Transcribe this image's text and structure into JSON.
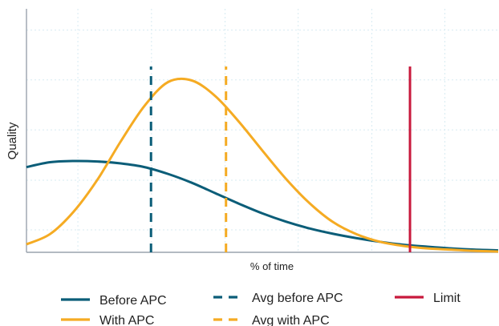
{
  "chart_data": {
    "type": "line",
    "title": "",
    "xlabel": "% of time",
    "ylabel": "Quality",
    "xlim": [
      0,
      100
    ],
    "ylim": [
      0,
      100
    ],
    "grid": true,
    "legend_placement": "bottom",
    "x_ticks": [
      0,
      10.9,
      26.5,
      42.1,
      57.6,
      73.2,
      88.7,
      100
    ],
    "y_ticks": [
      9.2,
      29.6,
      50.3,
      70.8,
      91.3
    ],
    "series": [
      {
        "name": "Before APC",
        "style": "solid",
        "color": "#0b5d78",
        "x": [
          0,
          5,
          10,
          15,
          20,
          25,
          30,
          35,
          40,
          45,
          50,
          55,
          60,
          65,
          70,
          75,
          80,
          85,
          90,
          95,
          100
        ],
        "y": [
          35,
          37,
          37.5,
          37.3,
          36.5,
          35,
          32.2,
          28.6,
          24.3,
          20,
          16,
          12.6,
          9.8,
          7.6,
          5.8,
          4.3,
          3.1,
          2.3,
          1.6,
          1.1,
          0.8
        ]
      },
      {
        "name": "With APC",
        "style": "solid",
        "color": "#f5ab23",
        "x": [
          0,
          5,
          10,
          15,
          20,
          25,
          30,
          35,
          40,
          45,
          50,
          55,
          60,
          65,
          70,
          75,
          80,
          85,
          90,
          95,
          100
        ],
        "y": [
          3.3,
          7.5,
          16.7,
          29.7,
          45.6,
          60.1,
          69.9,
          70.6,
          64.2,
          53.7,
          41.8,
          30.2,
          20.2,
          12.4,
          7.4,
          4.3,
          2.6,
          1.6,
          1.1,
          0.6,
          0.3
        ]
      },
      {
        "name": "Avg before APC",
        "style": "dashed",
        "color": "#0b5d78",
        "x": [
          26.4,
          26.4
        ],
        "y": [
          0,
          76.3
        ]
      },
      {
        "name": "Avg with APC",
        "style": "dashed",
        "color": "#f5ab23",
        "x": [
          42.3,
          42.3
        ],
        "y": [
          0,
          76.3
        ]
      },
      {
        "name": "Limit",
        "style": "solid",
        "color": "#c8193c",
        "x": [
          81.3,
          81.3
        ],
        "y": [
          0,
          76.3
        ]
      }
    ]
  }
}
